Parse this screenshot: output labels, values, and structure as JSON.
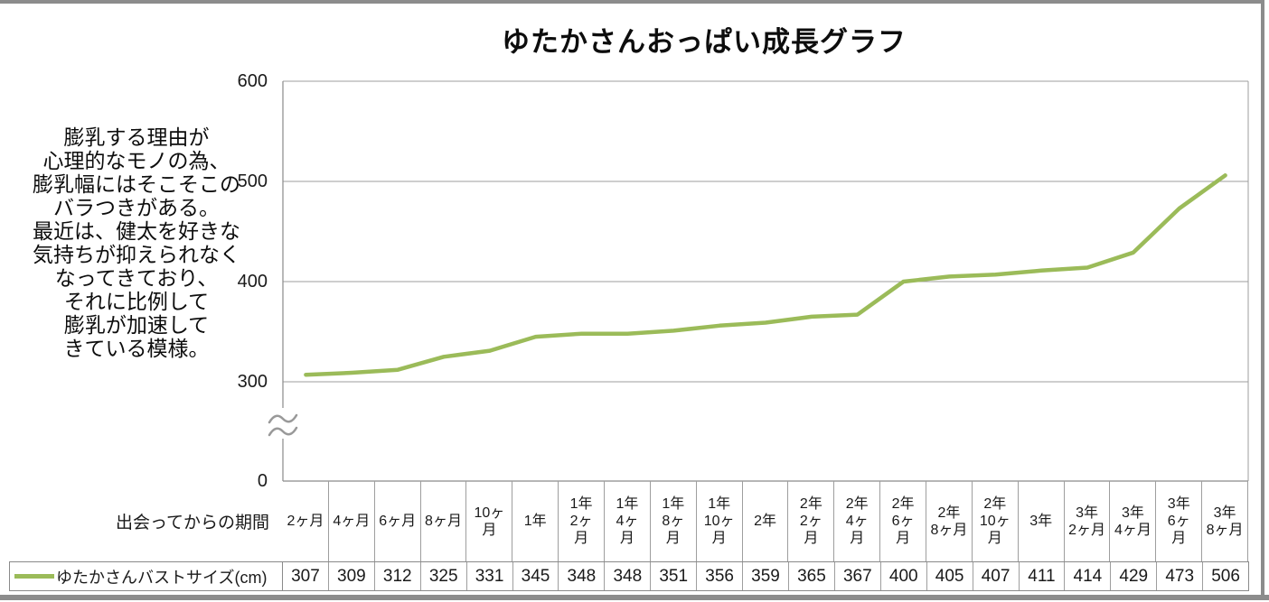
{
  "title": "ゆたかさんおっぱい成長グラフ",
  "annotation": "膨乳する理由が\n心理的なモノの為、\n膨乳幅にはそこそこの\nバラつきがある。\n最近は、健太を好きな\n気持ちが抑えられなく\nなってきており、\nそれに比例して\n膨乳が加速して\nきている模様。",
  "y_axis": {
    "tick_labels": [
      "600",
      "500",
      "400",
      "300",
      "0"
    ],
    "axis_break_between": [
      0,
      300
    ]
  },
  "table": {
    "period_header": "出会ってからの期間",
    "series_header": "ゆたかさんバストサイズ(cm)",
    "categories_display": [
      "2ヶ月",
      "4ヶ月",
      "6ヶ月",
      "8ヶ月",
      "10ヶ\n月",
      "1年",
      "1年\n2ヶ\n月",
      "1年\n4ヶ\n月",
      "1年\n8ヶ\n月",
      "1年\n10ヶ\n月",
      "2年",
      "2年\n2ヶ\n月",
      "2年\n4ヶ\n月",
      "2年\n6ヶ\n月",
      "2年\n8ヶ月",
      "2年\n10ヶ\n月",
      "3年",
      "3年\n2ヶ月",
      "3年\n4ヶ月",
      "3年\n6ヶ\n月",
      "3年\n8ヶ月"
    ]
  },
  "chart_data": {
    "type": "line",
    "title": "ゆたかさんおっぱい成長グラフ",
    "xlabel": "出会ってからの期間",
    "ylabel": "",
    "categories": [
      "2ヶ月",
      "4ヶ月",
      "6ヶ月",
      "8ヶ月",
      "10ヶ月",
      "1年",
      "1年2ヶ月",
      "1年4ヶ月",
      "1年8ヶ月",
      "1年10ヶ月",
      "2年",
      "2年2ヶ月",
      "2年4ヶ月",
      "2年6ヶ月",
      "2年8ヶ月",
      "2年10ヶ月",
      "3年",
      "3年2ヶ月",
      "3年4ヶ月",
      "3年6ヶ月",
      "3年8ヶ月"
    ],
    "series": [
      {
        "name": "ゆたかさんバストサイズ(cm)",
        "color": "#9BBB59",
        "values": [
          307,
          309,
          312,
          325,
          331,
          345,
          348,
          348,
          351,
          356,
          359,
          365,
          367,
          400,
          405,
          407,
          411,
          414,
          429,
          473,
          506
        ]
      }
    ],
    "ylim": [
      0,
      600
    ],
    "y_ticks": [
      0,
      300,
      400,
      500,
      600
    ],
    "y_axis_break": true,
    "grid": true,
    "legend_position": "bottom-left"
  },
  "colors": {
    "accent": "#9BBB59",
    "grid": "#9E9E9E",
    "axis": "#8A8A8A",
    "table_border": "#8A8A8A",
    "window_edge": "#8C8C8C"
  }
}
